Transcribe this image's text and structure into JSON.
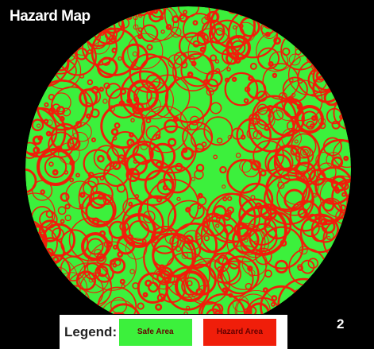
{
  "title": "Hazard Map",
  "legend": {
    "label": "Legend:",
    "items": [
      {
        "label": "Safe Area",
        "color": "#3cf03c"
      },
      {
        "label": "Hazard Area",
        "color": "#f01e0a"
      }
    ]
  },
  "page_number": "2"
}
